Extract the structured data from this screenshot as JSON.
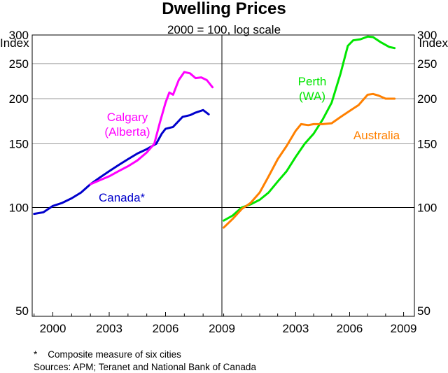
{
  "chart_data": {
    "type": "line",
    "title": "Dwelling Prices",
    "subtitle": "2000 = 100, log scale",
    "ylabel": "Index",
    "ylim": [
      50,
      300
    ],
    "yscale": "log",
    "yticks": [
      50,
      100,
      150,
      200,
      250,
      300
    ],
    "grid": true,
    "panels": [
      {
        "name": "left",
        "xlim": [
          1998.9,
          2009.0
        ],
        "xticks": [
          2000,
          2003,
          2006,
          2009
        ],
        "series": [
          {
            "name": "Canada*",
            "color": "#0000cc",
            "label_lines": [
              "Canada*"
            ],
            "points": [
              [
                1999.0,
                96
              ],
              [
                1999.5,
                97
              ],
              [
                2000.0,
                101
              ],
              [
                2000.5,
                103
              ],
              [
                2001.0,
                106
              ],
              [
                2001.5,
                110
              ],
              [
                2002.0,
                116
              ],
              [
                2002.5,
                121
              ],
              [
                2003.0,
                126
              ],
              [
                2003.5,
                131
              ],
              [
                2004.0,
                136
              ],
              [
                2004.5,
                141
              ],
              [
                2005.0,
                145
              ],
              [
                2005.5,
                150
              ],
              [
                2005.8,
                160
              ],
              [
                2006.0,
                165
              ],
              [
                2006.4,
                167
              ],
              [
                2006.9,
                178
              ],
              [
                2007.3,
                180
              ],
              [
                2007.6,
                183
              ],
              [
                2008.0,
                186
              ],
              [
                2008.3,
                181
              ]
            ]
          },
          {
            "name": "Calgary (Alberta)",
            "color": "#ff00ff",
            "label_lines": [
              "Calgary",
              "(Alberta)"
            ],
            "points": [
              [
                2002.0,
                116
              ],
              [
                2002.5,
                119
              ],
              [
                2003.0,
                122
              ],
              [
                2003.5,
                126
              ],
              [
                2004.0,
                130
              ],
              [
                2004.5,
                135
              ],
              [
                2005.0,
                142
              ],
              [
                2005.4,
                150
              ],
              [
                2005.7,
                172
              ],
              [
                2006.0,
                195
              ],
              [
                2006.2,
                208
              ],
              [
                2006.4,
                205
              ],
              [
                2006.7,
                225
              ],
              [
                2007.0,
                237
              ],
              [
                2007.3,
                235
              ],
              [
                2007.6,
                228
              ],
              [
                2007.9,
                229
              ],
              [
                2008.2,
                225
              ],
              [
                2008.5,
                215
              ]
            ]
          }
        ]
      },
      {
        "name": "right",
        "xlim": [
          1998.9,
          2009.6
        ],
        "xticks": [
          2003,
          2006,
          2009
        ],
        "series": [
          {
            "name": "Perth (WA)",
            "color": "#00e600",
            "label_lines": [
              "Perth",
              "(WA)"
            ],
            "points": [
              [
                1999.0,
                92
              ],
              [
                1999.5,
                95
              ],
              [
                2000.0,
                100
              ],
              [
                2000.5,
                102
              ],
              [
                2001.0,
                105
              ],
              [
                2001.5,
                110
              ],
              [
                2002.0,
                118
              ],
              [
                2002.5,
                126
              ],
              [
                2003.0,
                138
              ],
              [
                2003.5,
                150
              ],
              [
                2004.0,
                160
              ],
              [
                2004.5,
                175
              ],
              [
                2005.0,
                195
              ],
              [
                2005.5,
                235
              ],
              [
                2005.9,
                280
              ],
              [
                2006.2,
                290
              ],
              [
                2006.6,
                292
              ],
              [
                2007.0,
                297
              ],
              [
                2007.3,
                296
              ],
              [
                2007.7,
                287
              ],
              [
                2008.2,
                278
              ],
              [
                2008.5,
                276
              ]
            ]
          },
          {
            "name": "Australia",
            "color": "#ff8000",
            "label_lines": [
              "Australia"
            ],
            "points": [
              [
                1999.0,
                88
              ],
              [
                1999.5,
                93
              ],
              [
                2000.0,
                99
              ],
              [
                2000.5,
                103
              ],
              [
                2001.0,
                110
              ],
              [
                2001.5,
                122
              ],
              [
                2002.0,
                136
              ],
              [
                2002.5,
                148
              ],
              [
                2003.0,
                163
              ],
              [
                2003.3,
                170
              ],
              [
                2003.7,
                169
              ],
              [
                2004.0,
                170
              ],
              [
                2004.5,
                170
              ],
              [
                2005.0,
                171
              ],
              [
                2005.5,
                178
              ],
              [
                2006.0,
                185
              ],
              [
                2006.5,
                192
              ],
              [
                2007.0,
                205
              ],
              [
                2007.3,
                206
              ],
              [
                2007.6,
                204
              ],
              [
                2008.0,
                200
              ],
              [
                2008.5,
                200
              ]
            ]
          }
        ]
      }
    ],
    "footnotes": [
      "*    Composite measure of six cities",
      "Sources: APM; Teranet and National Bank of Canada"
    ]
  }
}
